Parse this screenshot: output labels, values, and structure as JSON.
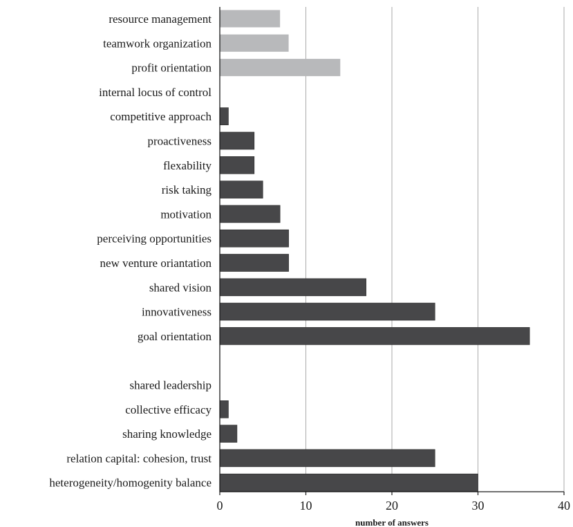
{
  "chart_data": {
    "type": "bar",
    "orientation": "horizontal",
    "xlabel": "number of answers",
    "ylabel": "",
    "title": "",
    "xlim": [
      0,
      40
    ],
    "x_ticks": [
      0,
      10,
      20,
      30,
      40
    ],
    "grid": "vertical",
    "colors": {
      "light": "#b8b9bb",
      "dark": "#474749",
      "border": "#2a2a2a"
    },
    "groups": [
      {
        "style": "light",
        "categories": [
          "resource management",
          "teamwork organization",
          "profit orientation"
        ],
        "values": [
          7,
          8,
          14
        ]
      },
      {
        "style": "dark",
        "categories": [
          "internal locus of control",
          "competitive approach",
          "proactiveness",
          "flexability",
          "risk taking",
          "motivation",
          "perceiving opportunities",
          "new venture oriantation",
          "shared vision",
          "innovativeness",
          "goal orientation"
        ],
        "values": [
          0,
          1,
          4,
          4,
          5,
          7,
          8,
          8,
          17,
          25,
          36
        ]
      },
      {
        "style": "dark",
        "categories": [
          "shared leadership",
          "collective efficacy",
          "sharing knowledge",
          "relation capital: cohesion, trust",
          "heterogeneity/homogenity balance"
        ],
        "values": [
          0,
          1,
          2,
          25,
          30
        ]
      }
    ]
  }
}
